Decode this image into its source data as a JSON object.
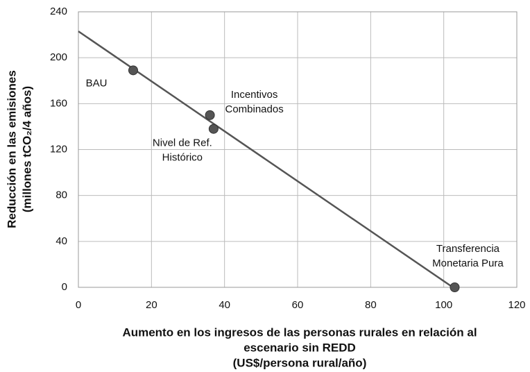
{
  "chart_data": {
    "type": "scatter",
    "x": [
      15,
      36,
      37,
      103
    ],
    "values": [
      189,
      150,
      138,
      0
    ],
    "point_labels": [
      [
        "BAU"
      ],
      [
        "Incentivos",
        "Combinados"
      ],
      [
        "Nivel de Ref.",
        "Histórico"
      ],
      [
        "Transferencia",
        "Monetaria Pura"
      ]
    ],
    "trendline": {
      "x": [
        0,
        102.5
      ],
      "values": [
        223,
        0
      ]
    },
    "color": "#555555",
    "xlim": [
      0,
      120
    ],
    "xticks": [
      0,
      20,
      40,
      60,
      80,
      100,
      120
    ],
    "ylim": [
      0,
      240
    ],
    "yticks": [
      0,
      40,
      80,
      120,
      160,
      200,
      240
    ],
    "grid": true,
    "x_label": [
      "Aumento en los ingresos de las personas rurales en relación al",
      "escenario sin REDD",
      "(US$/persona rural/año)"
    ],
    "y_label": [
      "Reducción en las emisiones",
      "(millones tCO₂/4 años)"
    ]
  }
}
